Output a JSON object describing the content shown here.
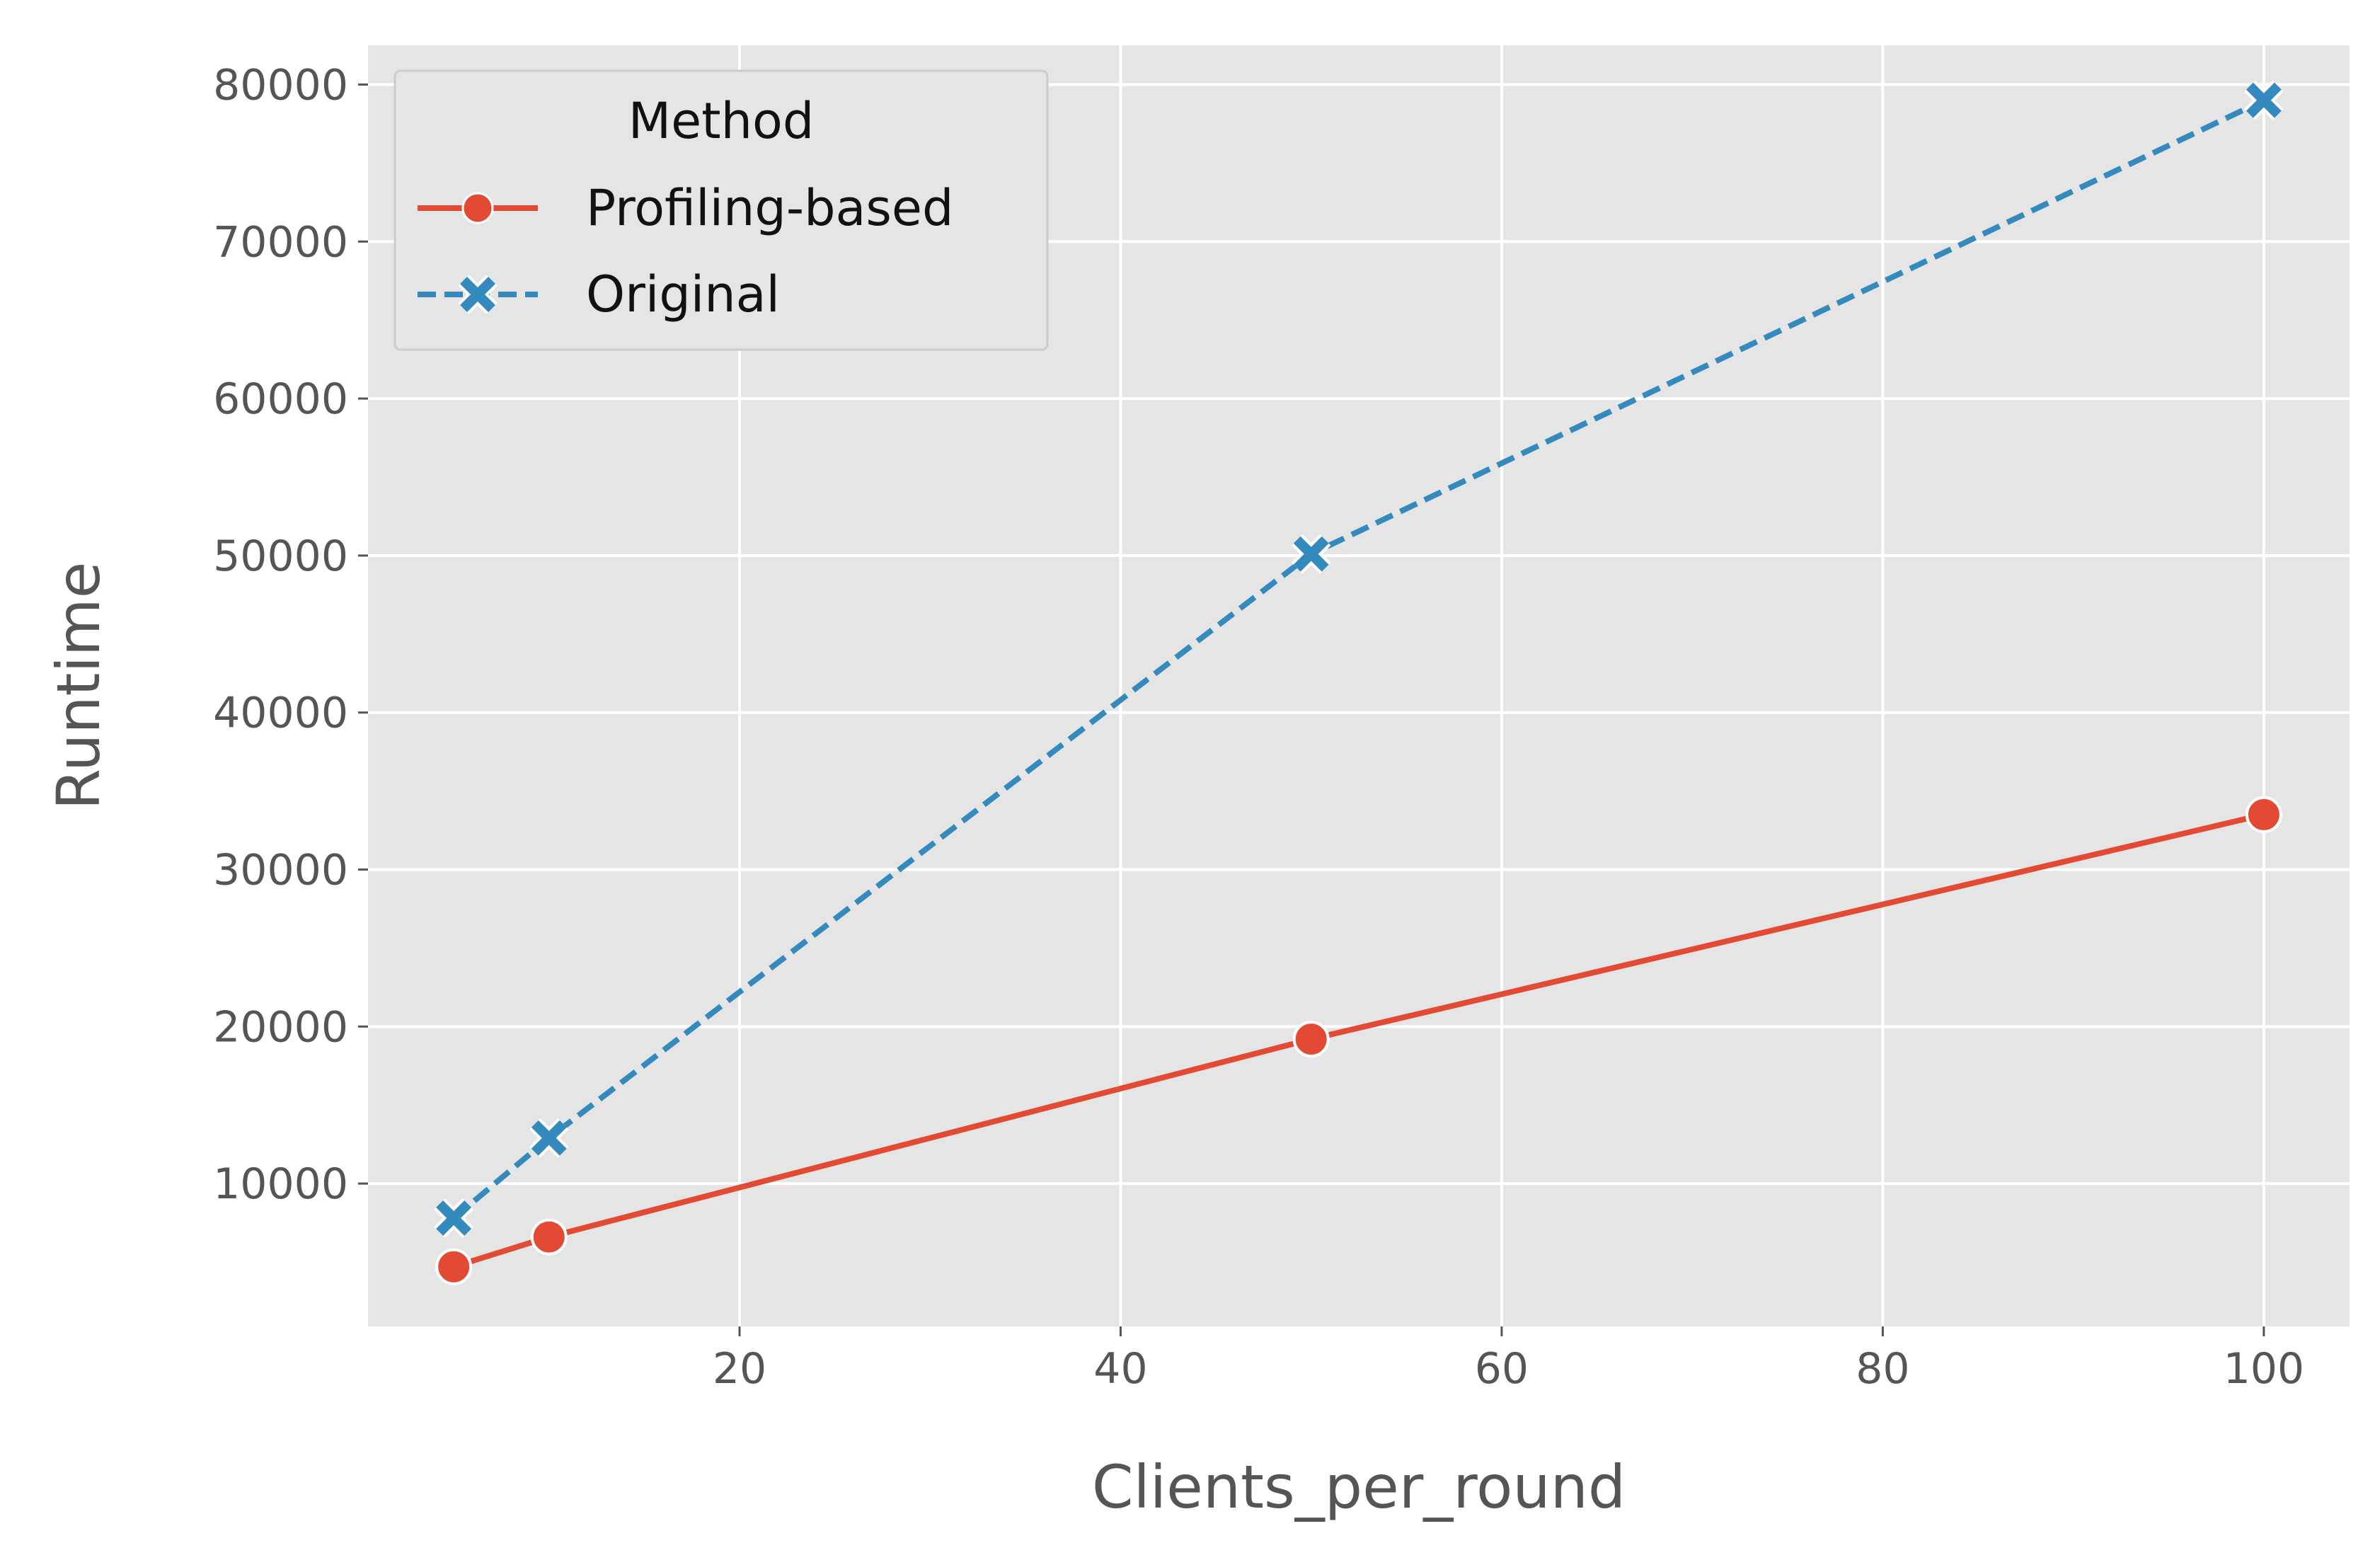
{
  "chart_data": {
    "type": "line",
    "title": "",
    "xlabel": "Clients_per_round",
    "ylabel": "Runtime",
    "xlim": [
      0.5,
      104.5
    ],
    "ylim": [
      900,
      82500
    ],
    "xticks": [
      20,
      40,
      60,
      80,
      100
    ],
    "yticks": [
      10000,
      20000,
      30000,
      40000,
      50000,
      60000,
      70000,
      80000
    ],
    "grid": true,
    "legend": {
      "title": "Method",
      "position": "top-left"
    },
    "series": [
      {
        "name": "Profiling-based",
        "color": "#E24A33",
        "line_style": "solid",
        "marker": "circle",
        "x": [
          5,
          10,
          50,
          100
        ],
        "y": [
          4700,
          6600,
          19200,
          33500
        ]
      },
      {
        "name": "Original",
        "color": "#348ABD",
        "line_style": "dashed",
        "marker": "x",
        "x": [
          5,
          10,
          50,
          100
        ],
        "y": [
          7800,
          12900,
          50100,
          79000
        ]
      }
    ],
    "background_color": "#E5E5E5",
    "grid_color": "#FFFFFF"
  }
}
